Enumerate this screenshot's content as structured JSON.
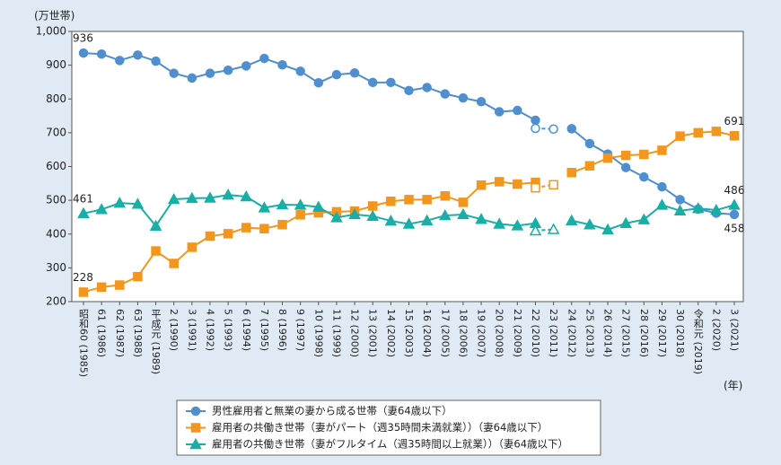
{
  "chart_data": {
    "type": "line",
    "y_unit": "(万世帯)",
    "x_unit": "(年)",
    "categories": [
      "昭和60 (1985)",
      "61 (1986)",
      "62 (1987)",
      "63 (1988)",
      "平成元 (1989)",
      "2 (1990)",
      "3 (1991)",
      "4 (1992)",
      "5 (1993)",
      "6 (1994)",
      "7 (1995)",
      "8 (1996)",
      "9 (1997)",
      "10 (1998)",
      "11 (1999)",
      "12 (2000)",
      "13 (2001)",
      "14 (2002)",
      "15 (2003)",
      "16 (2004)",
      "17 (2005)",
      "18 (2006)",
      "19 (2007)",
      "20 (2008)",
      "21 (2009)",
      "22 (2010)",
      "23 (2011)",
      "24 (2012)",
      "25 (2013)",
      "26 (2014)",
      "27 (2015)",
      "28 (2016)",
      "29 (2017)",
      "30 (2018)",
      "令和元 (2019)",
      "2 (2020)",
      "3 (2021)"
    ],
    "ylim": [
      200,
      1000
    ],
    "yticks": [
      200,
      300,
      400,
      500,
      600,
      700,
      800,
      900,
      {
        "value": 1000,
        "label": "1,000"
      }
    ],
    "grid": false,
    "series": [
      {
        "name": "男性雇用者と無業の妻から成る世帯（妻64歳以下）",
        "color": "#4f8fcf",
        "marker": "circle",
        "values": [
          936,
          933,
          914,
          930,
          912,
          876,
          862,
          876,
          885,
          898,
          920,
          901,
          882,
          848,
          872,
          877,
          849,
          849,
          825,
          834,
          815,
          803,
          792,
          762,
          766,
          737,
          null,
          712,
          668,
          637,
          597,
          569,
          540,
          502,
          474,
          462,
          458
        ],
        "estimate_values": [
          null,
          null,
          null,
          null,
          null,
          null,
          null,
          null,
          null,
          null,
          null,
          null,
          null,
          null,
          null,
          null,
          null,
          null,
          null,
          null,
          null,
          null,
          null,
          null,
          null,
          713,
          711,
          null,
          null,
          null,
          null,
          null,
          null,
          null,
          null,
          null,
          null
        ],
        "labeled_indices": [
          0,
          36
        ]
      },
      {
        "name": "雇用者の共働き世帯（妻がパート（週35時間未満就業））（妻64歳以下）",
        "color": "#f2961e",
        "marker": "square",
        "values": [
          228,
          243,
          249,
          274,
          350,
          313,
          361,
          394,
          401,
          419,
          416,
          428,
          457,
          463,
          466,
          468,
          483,
          497,
          502,
          502,
          513,
          494,
          545,
          555,
          548,
          553,
          null,
          582,
          602,
          625,
          633,
          636,
          648,
          690,
          700,
          704,
          691
        ],
        "estimate_values": [
          null,
          null,
          null,
          null,
          null,
          null,
          null,
          null,
          null,
          null,
          null,
          null,
          null,
          null,
          null,
          null,
          null,
          null,
          null,
          null,
          null,
          null,
          null,
          null,
          null,
          537,
          546,
          null,
          null,
          null,
          null,
          null,
          null,
          null,
          null,
          null,
          null
        ],
        "labeled_indices": [
          0,
          36
        ]
      },
      {
        "name": "雇用者の共働き世帯（妻がフルタイム（週35時間以上就業））（妻64歳以下）",
        "color": "#19aea6",
        "marker": "triangle",
        "values": [
          461,
          473,
          492,
          489,
          424,
          503,
          506,
          507,
          516,
          511,
          478,
          487,
          486,
          480,
          449,
          458,
          453,
          439,
          430,
          440,
          455,
          458,
          444,
          430,
          425,
          432,
          null,
          440,
          428,
          413,
          432,
          443,
          486,
          469,
          476,
          471,
          486
        ],
        "estimate_values": [
          null,
          null,
          null,
          null,
          null,
          null,
          null,
          null,
          null,
          null,
          null,
          null,
          null,
          null,
          null,
          null,
          null,
          null,
          null,
          null,
          null,
          null,
          null,
          null,
          null,
          410,
          414,
          null,
          null,
          null,
          null,
          null,
          null,
          null,
          null,
          null,
          null
        ],
        "labeled_indices": [
          0,
          36
        ]
      }
    ]
  }
}
